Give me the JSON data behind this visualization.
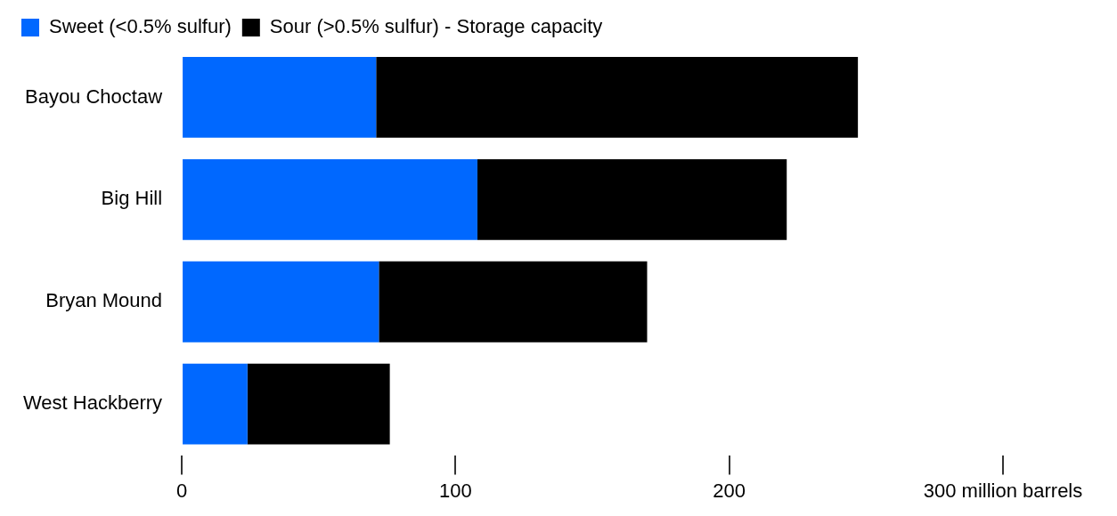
{
  "chart_data": {
    "type": "bar",
    "orientation": "horizontal",
    "stacked": true,
    "categories": [
      "Bayou Choctaw",
      "Big Hill",
      "Bryan Mound",
      "West Hackberry"
    ],
    "series": [
      {
        "name": "Sweet (<0.5% sulfur)",
        "color": "#0068ff",
        "values": [
          71,
          108,
          72,
          24
        ]
      },
      {
        "name": "Sour (>0.5% sulfur) - Storage capacity",
        "color": "#000000",
        "values": [
          176,
          113,
          98,
          52
        ]
      }
    ],
    "xlim": [
      0,
      300
    ],
    "xticks": [
      0,
      100,
      200,
      {
        "value": 300,
        "label": "300 million barrels"
      }
    ],
    "grid": false,
    "legend": "top left"
  }
}
